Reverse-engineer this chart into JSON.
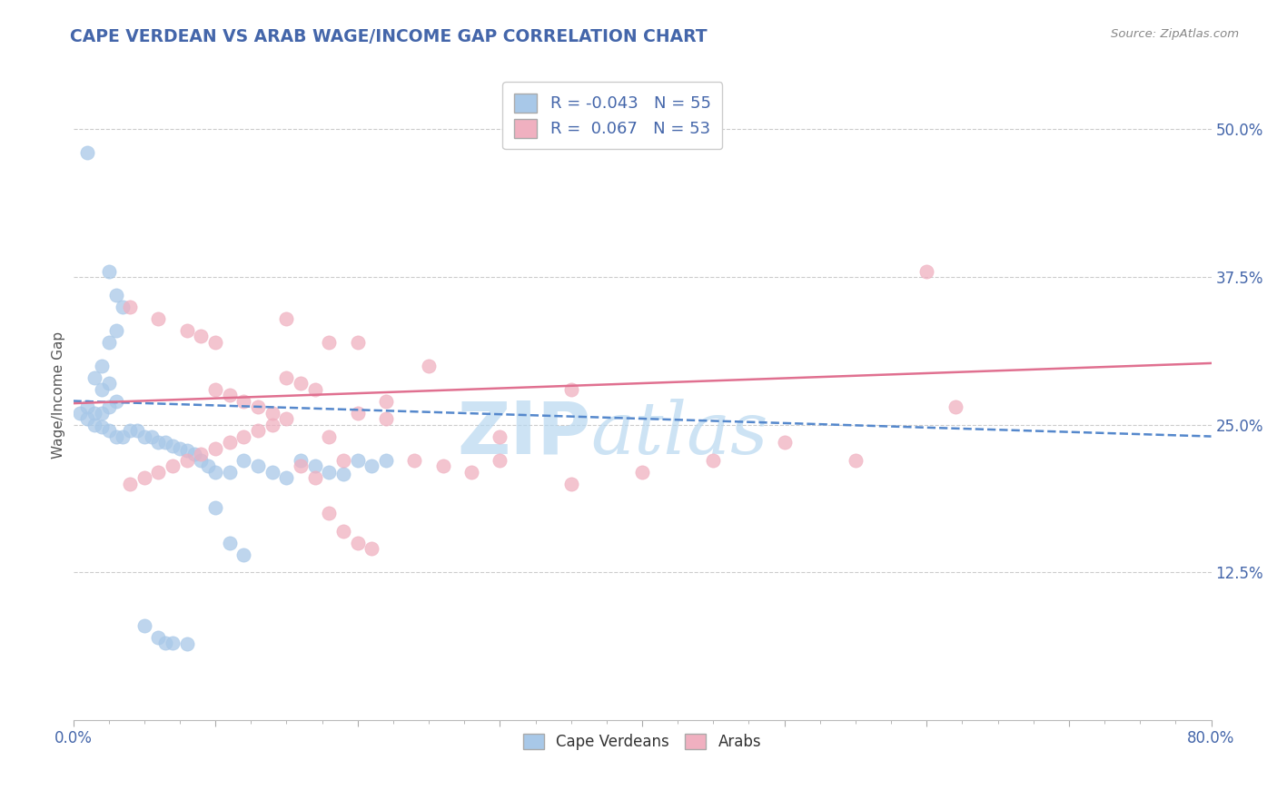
{
  "title": "CAPE VERDEAN VS ARAB WAGE/INCOME GAP CORRELATION CHART",
  "source": "Source: ZipAtlas.com",
  "ylabel": "Wage/Income Gap",
  "legend_label1": "Cape Verdeans",
  "legend_label2": "Arabs",
  "r1": -0.043,
  "n1": 55,
  "r2": 0.067,
  "n2": 53,
  "color_blue": "#a8c8e8",
  "color_pink": "#f0b0c0",
  "color_blue_line": "#5588cc",
  "color_pink_line": "#e07090",
  "color_title": "#4466aa",
  "background_color": "#ffffff",
  "xmin": 0.0,
  "xmax": 0.8,
  "ymin": 0.0,
  "ymax": 0.55,
  "y_tick_values": [
    0.125,
    0.25,
    0.375,
    0.5
  ],
  "y_tick_labels": [
    "12.5%",
    "25.0%",
    "37.5%",
    "50.0%"
  ],
  "blue_trend": [
    0.27,
    0.24
  ],
  "pink_trend": [
    0.268,
    0.302
  ],
  "blue_points_x": [
    0.01,
    0.025,
    0.03,
    0.035,
    0.03,
    0.025,
    0.02,
    0.015,
    0.02,
    0.025,
    0.03,
    0.025,
    0.02,
    0.015,
    0.01,
    0.005,
    0.01,
    0.015,
    0.02,
    0.025,
    0.03,
    0.035,
    0.04,
    0.045,
    0.05,
    0.055,
    0.06,
    0.065,
    0.07,
    0.075,
    0.08,
    0.085,
    0.09,
    0.095,
    0.1,
    0.11,
    0.12,
    0.13,
    0.14,
    0.15,
    0.16,
    0.17,
    0.18,
    0.19,
    0.2,
    0.21,
    0.22,
    0.1,
    0.11,
    0.12,
    0.05,
    0.06,
    0.065,
    0.07,
    0.08
  ],
  "blue_points_y": [
    0.48,
    0.38,
    0.36,
    0.35,
    0.33,
    0.32,
    0.3,
    0.29,
    0.28,
    0.285,
    0.27,
    0.265,
    0.26,
    0.26,
    0.265,
    0.26,
    0.255,
    0.25,
    0.248,
    0.245,
    0.24,
    0.24,
    0.245,
    0.245,
    0.24,
    0.24,
    0.235,
    0.235,
    0.232,
    0.23,
    0.228,
    0.225,
    0.22,
    0.215,
    0.21,
    0.21,
    0.22,
    0.215,
    0.21,
    0.205,
    0.22,
    0.215,
    0.21,
    0.208,
    0.22,
    0.215,
    0.22,
    0.18,
    0.15,
    0.14,
    0.08,
    0.07,
    0.065,
    0.065,
    0.064
  ],
  "pink_points_x": [
    0.04,
    0.06,
    0.08,
    0.09,
    0.1,
    0.1,
    0.11,
    0.12,
    0.13,
    0.14,
    0.15,
    0.14,
    0.13,
    0.12,
    0.11,
    0.1,
    0.09,
    0.08,
    0.07,
    0.06,
    0.05,
    0.04,
    0.15,
    0.16,
    0.17,
    0.18,
    0.2,
    0.22,
    0.24,
    0.26,
    0.28,
    0.3,
    0.35,
    0.4,
    0.45,
    0.5,
    0.55,
    0.6,
    0.62,
    0.18,
    0.19,
    0.2,
    0.21,
    0.3,
    0.35,
    0.2,
    0.25,
    0.15,
    0.16,
    0.17,
    0.18,
    0.19,
    0.22
  ],
  "pink_points_y": [
    0.35,
    0.34,
    0.33,
    0.325,
    0.32,
    0.28,
    0.275,
    0.27,
    0.265,
    0.26,
    0.255,
    0.25,
    0.245,
    0.24,
    0.235,
    0.23,
    0.225,
    0.22,
    0.215,
    0.21,
    0.205,
    0.2,
    0.29,
    0.285,
    0.28,
    0.32,
    0.26,
    0.255,
    0.22,
    0.215,
    0.21,
    0.22,
    0.2,
    0.21,
    0.22,
    0.235,
    0.22,
    0.38,
    0.265,
    0.175,
    0.16,
    0.15,
    0.145,
    0.24,
    0.28,
    0.32,
    0.3,
    0.34,
    0.215,
    0.205,
    0.24,
    0.22,
    0.27
  ]
}
